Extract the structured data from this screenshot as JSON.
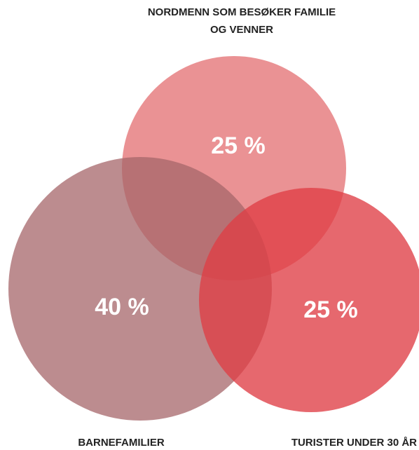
{
  "sets": [
    {
      "label_lines": [
        "NORDMENN SOM BESØKER FAMILIE",
        "OG VENNER"
      ],
      "value_label": "25 %"
    },
    {
      "label_lines": [
        "BARNEFAMILIER"
      ],
      "value_label": "40 %"
    },
    {
      "label_lines": [
        "TURISTER UNDER 30 ÅR"
      ],
      "value_label": "25 %"
    }
  ]
}
